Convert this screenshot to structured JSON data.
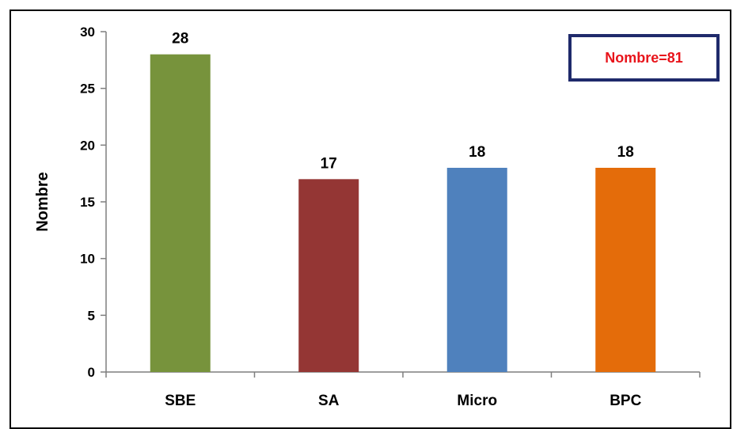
{
  "chart_data": {
    "type": "bar",
    "categories": [
      "SBE",
      "SA",
      "Micro",
      "BPC"
    ],
    "values": [
      28,
      17,
      18,
      18
    ],
    "colors": [
      "#77933c",
      "#943634",
      "#4f81bd",
      "#e46c0a"
    ],
    "title": "",
    "xlabel": "",
    "ylabel": "Nombre",
    "ylim": [
      0,
      30
    ],
    "yticks": [
      0,
      5,
      10,
      15,
      20,
      25,
      30
    ],
    "grid": false,
    "data_labels": true,
    "annotation": "Nombre=81"
  }
}
